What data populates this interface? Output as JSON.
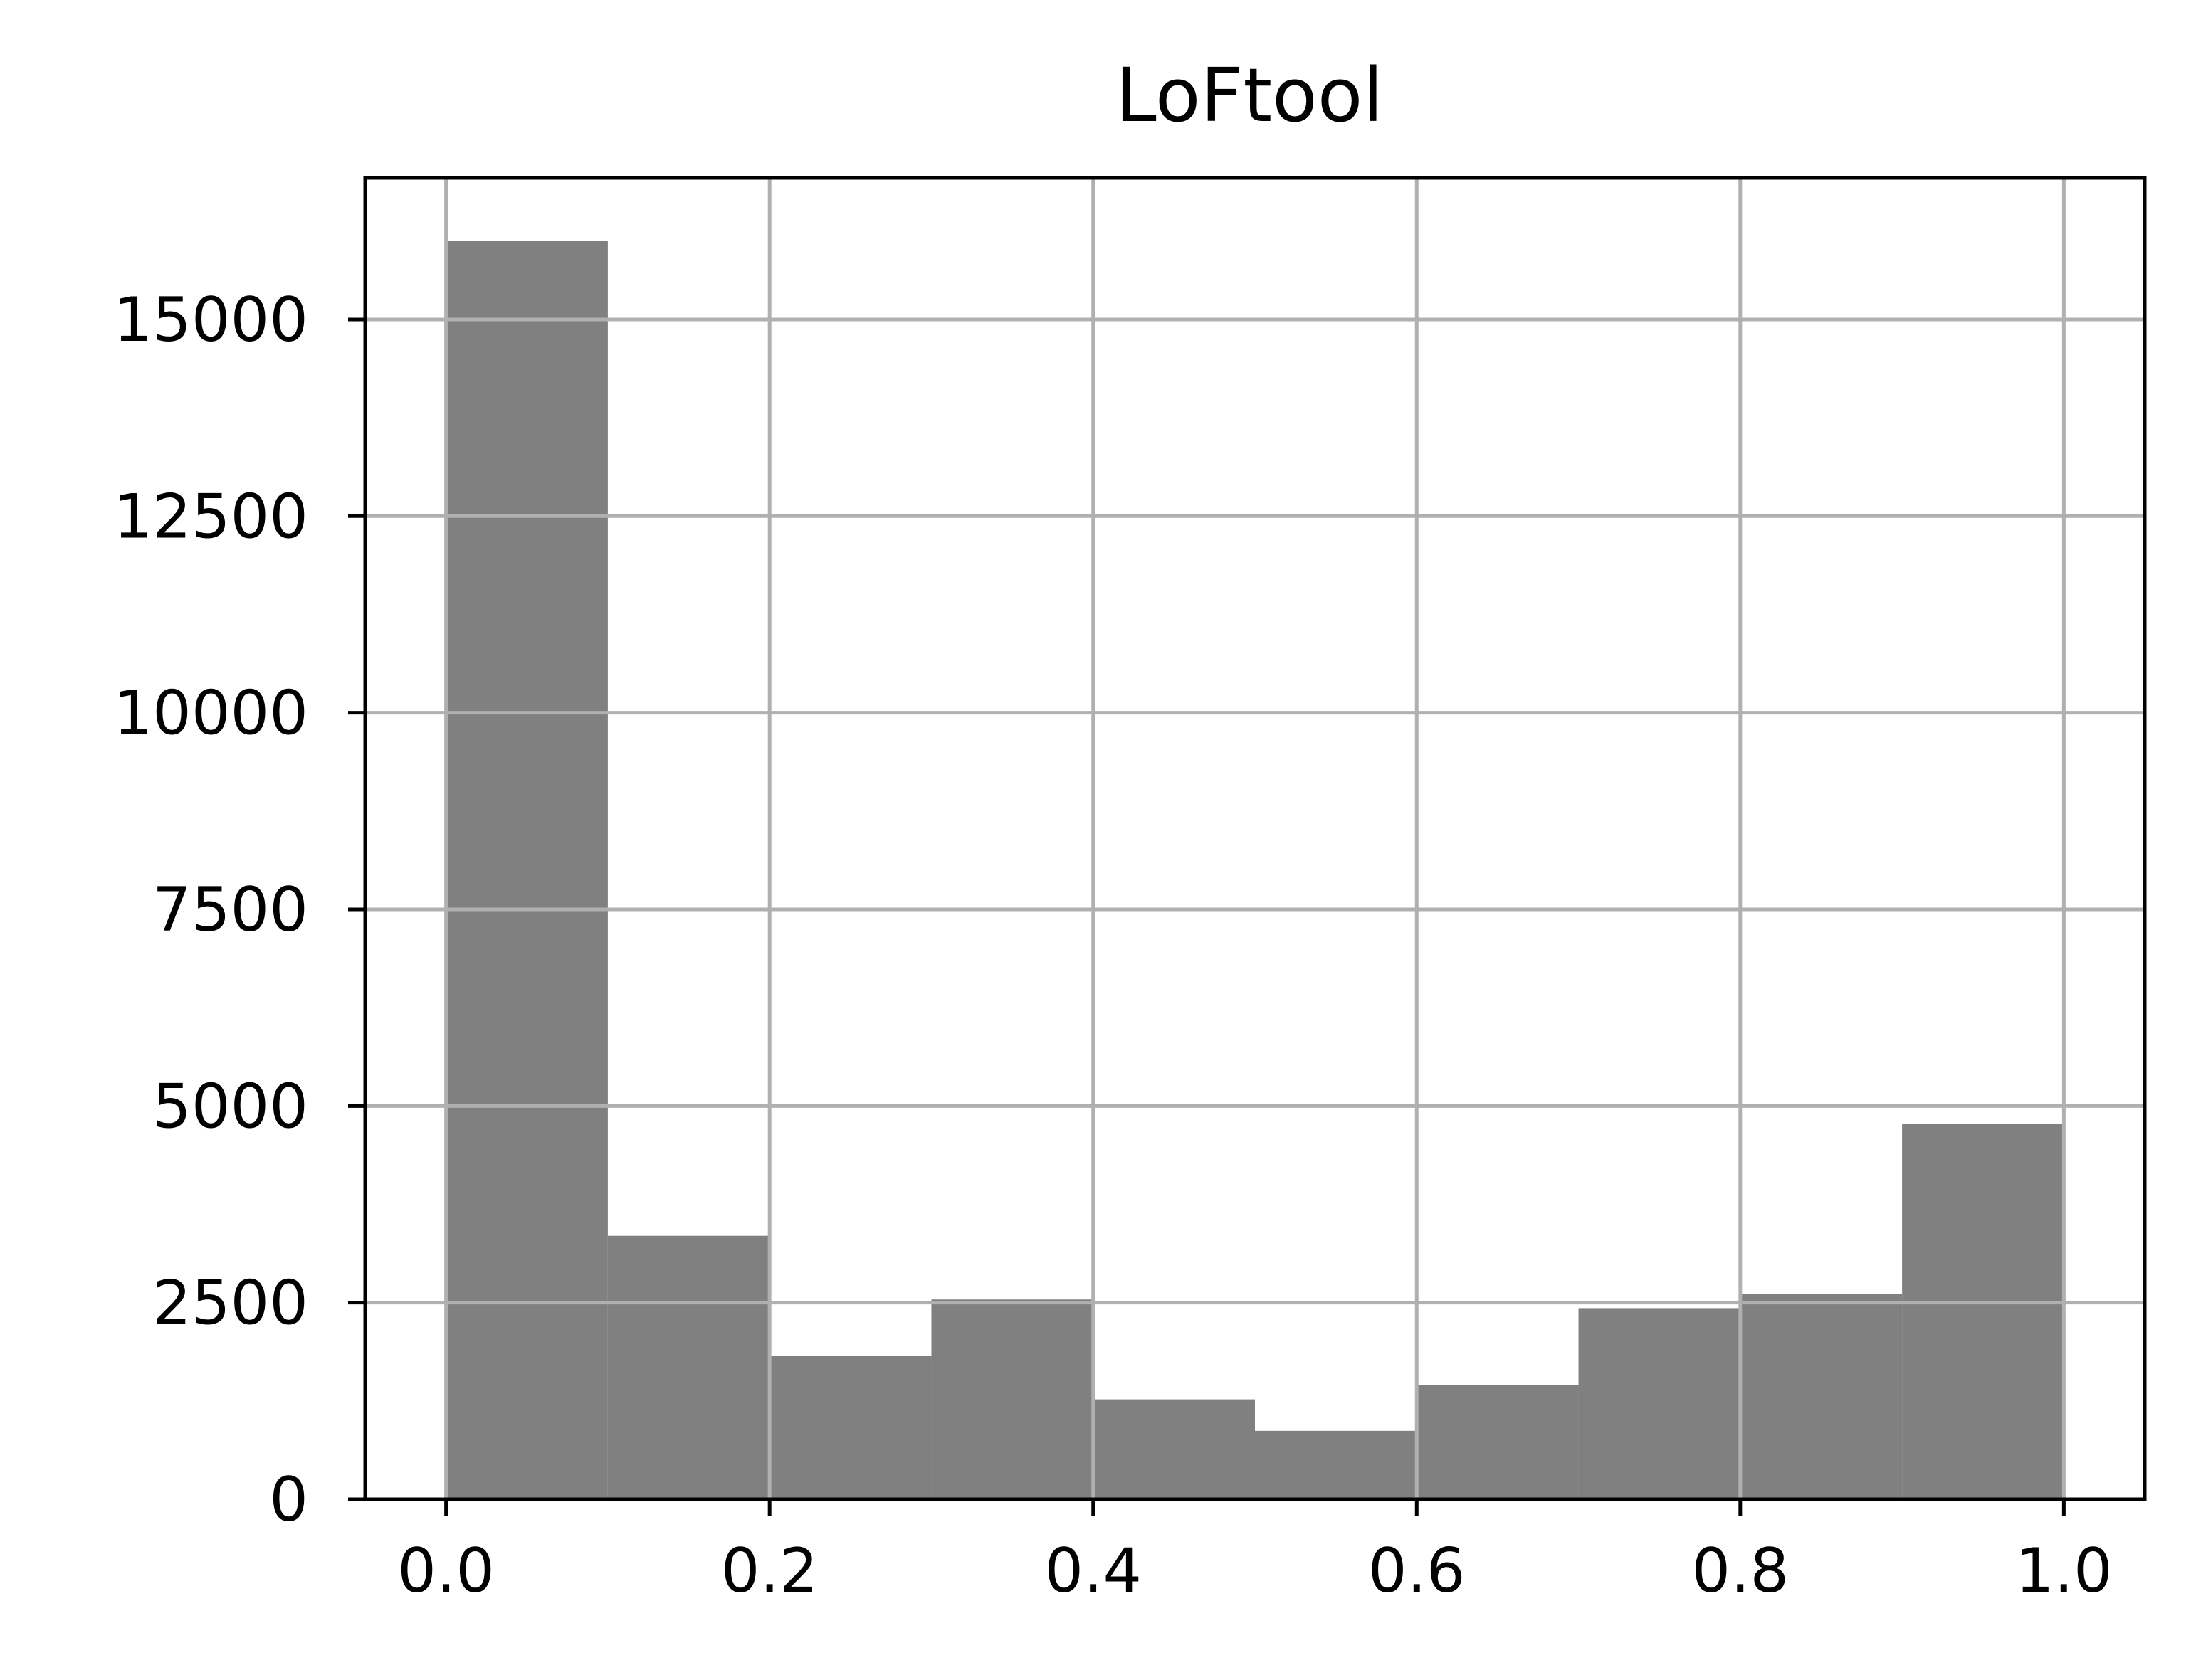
{
  "chart_data": {
    "type": "bar",
    "title": "LoFtool",
    "xlabel": "",
    "ylabel": "",
    "bin_edges": [
      0.0,
      0.1,
      0.2,
      0.3,
      0.4,
      0.5,
      0.6,
      0.7,
      0.8,
      0.9,
      1.0
    ],
    "values": [
      16000,
      3350,
      1820,
      2540,
      1270,
      870,
      1450,
      2430,
      2610,
      4770
    ],
    "xlim": [
      -0.05,
      1.05
    ],
    "ylim": [
      0,
      16800
    ],
    "xticks": [
      0.0,
      0.2,
      0.4,
      0.6,
      0.8,
      1.0
    ],
    "xtick_labels": [
      "0.0",
      "0.2",
      "0.4",
      "0.6",
      "0.8",
      "1.0"
    ],
    "yticks": [
      0,
      2500,
      5000,
      7500,
      10000,
      12500,
      15000
    ],
    "ytick_labels": [
      "0",
      "2500",
      "5000",
      "7500",
      "10000",
      "12500",
      "15000"
    ],
    "grid": true,
    "bar_color": "#808080",
    "grid_color": "#b0b0b0"
  }
}
